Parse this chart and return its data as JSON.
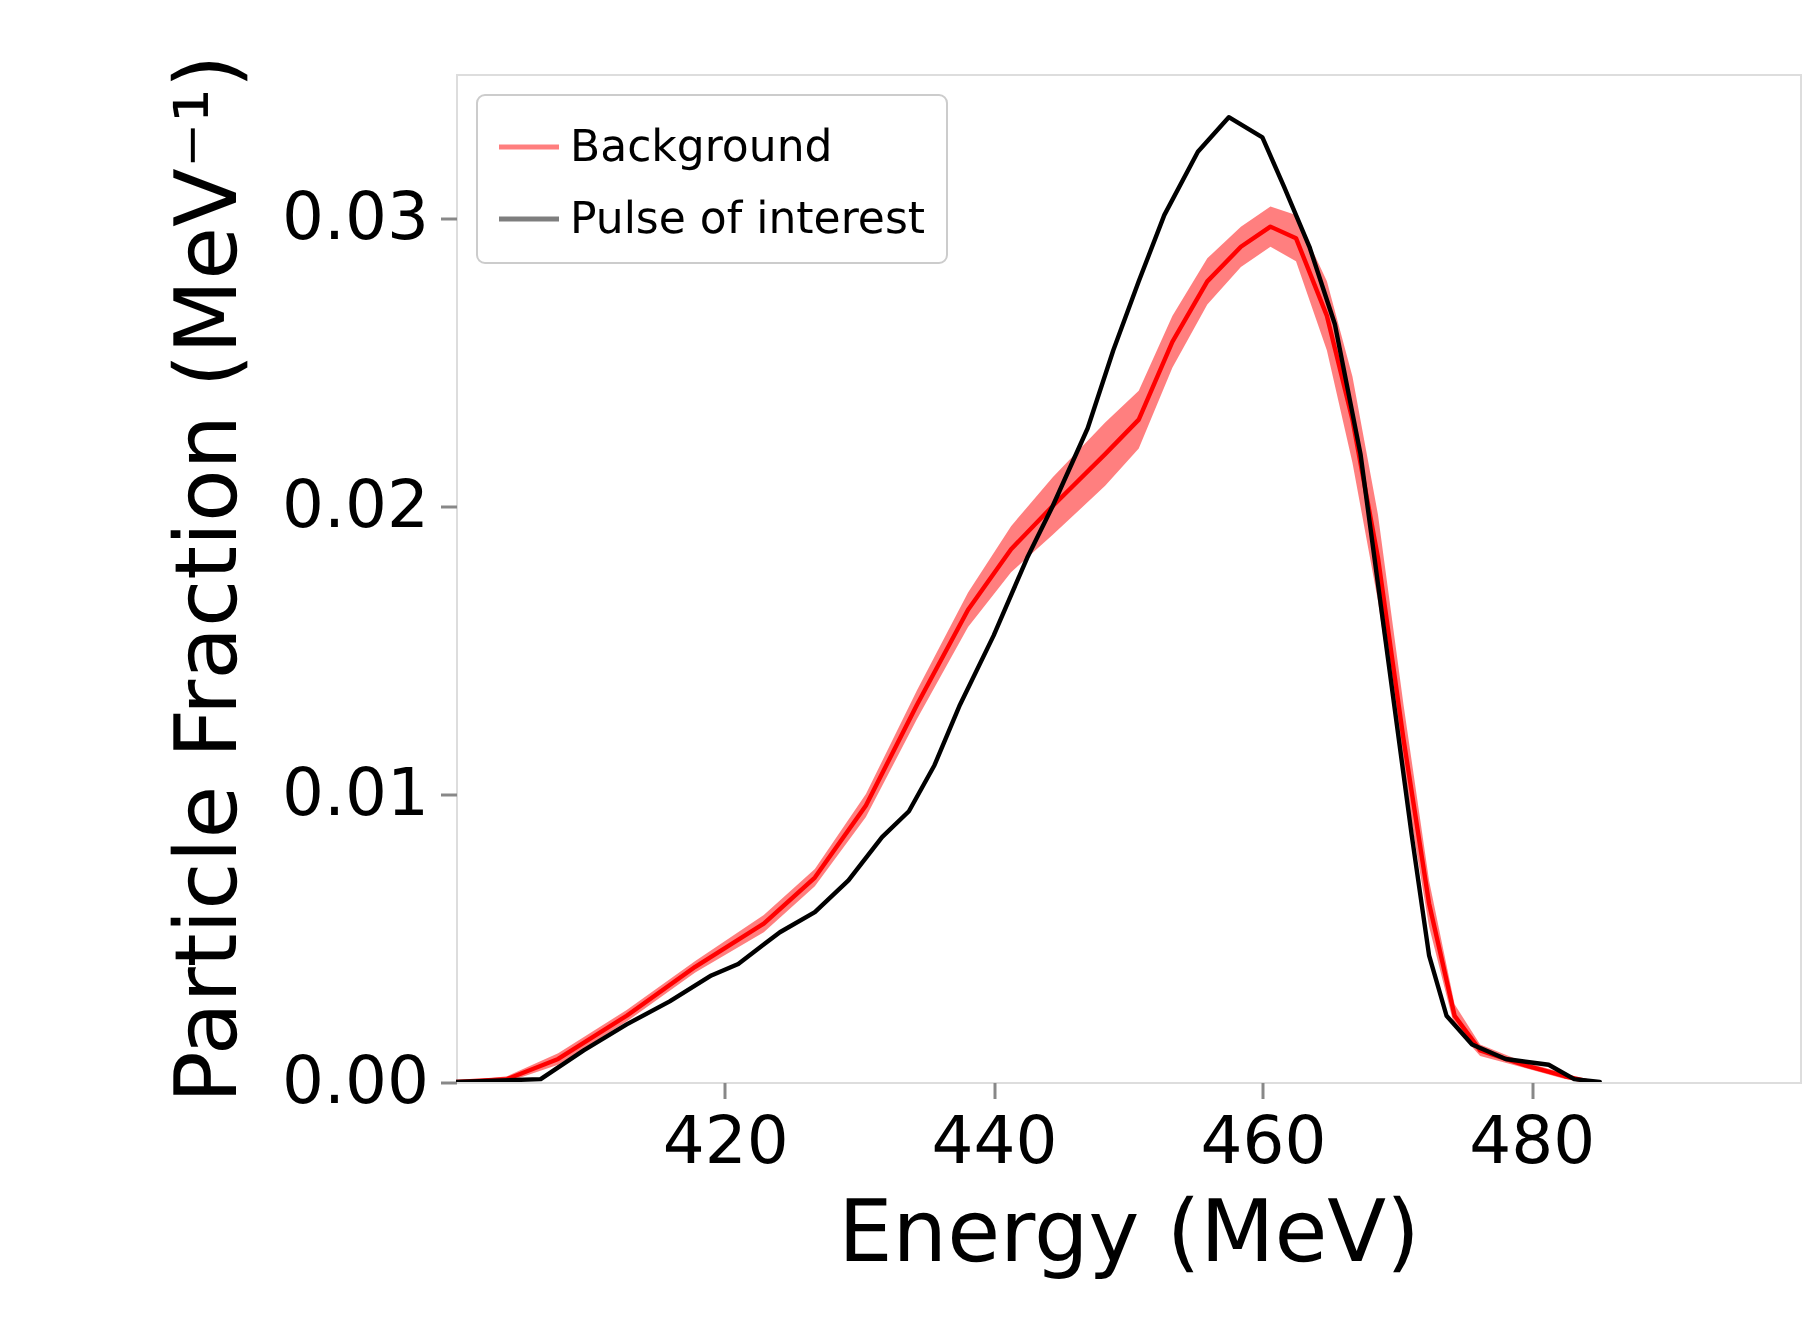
{
  "chart_data": {
    "type": "line",
    "xlabel": "Energy (MeV)",
    "ylabel": "Particle Fraction (MeV⁻¹)",
    "xlim": [
      400,
      500
    ],
    "ylim": [
      0,
      0.035
    ],
    "xticks": [
      420,
      440,
      460,
      480
    ],
    "yticks": [
      {
        "value": 0,
        "label": "0.00"
      },
      {
        "value": 0.01,
        "label": "0.01"
      },
      {
        "value": 0.02,
        "label": "0.02"
      },
      {
        "value": 0.03,
        "label": "0.03"
      }
    ],
    "grid": false,
    "legend": "top left",
    "marker": "none",
    "line_style": "solid",
    "series": [
      {
        "name": "Background",
        "color": "#ff0000",
        "x": [
          400,
          403.8,
          407.6,
          412.7,
          417.8,
          422.9,
          426.7,
          430.5,
          434.3,
          438.1,
          441.3,
          444.4,
          448.3,
          450.8,
          453.3,
          455.9,
          458.4,
          460.6,
          462.5,
          464.8,
          466.7,
          468.6,
          470.5,
          472.4,
          474.3,
          476.2,
          479.4,
          482.5,
          484.4
        ],
        "values": [
          0,
          0.0001,
          0.0008,
          0.0023,
          0.004,
          0.0055,
          0.0071,
          0.0096,
          0.0131,
          0.0164,
          0.0185,
          0.02,
          0.0218,
          0.023,
          0.0257,
          0.0278,
          0.029,
          0.0297,
          0.0293,
          0.0266,
          0.023,
          0.0182,
          0.0119,
          0.0062,
          0.0023,
          0.0011,
          0.0006,
          0.0002,
          0
        ],
        "lower": [
          0,
          0,
          0.0006,
          0.0021,
          0.0038,
          0.0052,
          0.0068,
          0.0092,
          0.0126,
          0.0158,
          0.0177,
          0.019,
          0.0207,
          0.022,
          0.0248,
          0.027,
          0.0283,
          0.029,
          0.0285,
          0.0254,
          0.0215,
          0.0167,
          0.0107,
          0.0054,
          0.0019,
          0.0009,
          0.0005,
          0.0001,
          0
        ],
        "upper": [
          0,
          0.0002,
          0.001,
          0.0025,
          0.0042,
          0.0058,
          0.0074,
          0.01,
          0.0136,
          0.017,
          0.0193,
          0.021,
          0.0229,
          0.024,
          0.0266,
          0.0286,
          0.0297,
          0.0304,
          0.0301,
          0.0278,
          0.0245,
          0.0197,
          0.0131,
          0.007,
          0.0027,
          0.0013,
          0.0007,
          0.0003,
          0
        ]
      },
      {
        "name": "Pulse of interest",
        "color": "#000000",
        "x": [
          400,
          406.3,
          409.5,
          412.7,
          415.9,
          419,
          421,
          424.1,
          426.7,
          429.2,
          431.7,
          433.7,
          435.6,
          437.5,
          440,
          442.5,
          444.4,
          447,
          448.9,
          450.8,
          452.7,
          455.2,
          457.5,
          460,
          461.6,
          463.5,
          465.4,
          467.3,
          469.2,
          471.1,
          472.4,
          473.7,
          475.6,
          478.1,
          481.3,
          483.2,
          485.1
        ],
        "values": [
          0,
          0.0001,
          0.0011,
          0.002,
          0.0028,
          0.0037,
          0.0041,
          0.0052,
          0.0059,
          0.007,
          0.0085,
          0.0094,
          0.011,
          0.0131,
          0.0155,
          0.0182,
          0.02,
          0.0227,
          0.0254,
          0.0278,
          0.0301,
          0.0323,
          0.0335,
          0.0328,
          0.0311,
          0.029,
          0.0263,
          0.0218,
          0.0152,
          0.0086,
          0.0044,
          0.0023,
          0.0013,
          0.0008,
          0.0006,
          0.0001,
          0
        ]
      }
    ]
  }
}
